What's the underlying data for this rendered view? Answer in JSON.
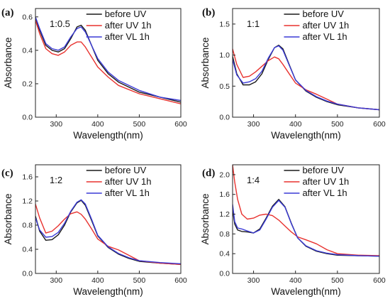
{
  "colors": {
    "before UV": "#1a1a1a",
    "after UV 1h": "#e8322f",
    "after VL 1h": "#3a3ad6"
  },
  "chart_data": [
    {
      "type": "line",
      "panel": "(a)",
      "ratio": "1:0.5",
      "xlabel": "Wavelength(nm)",
      "ylabel": "Absorbance",
      "xlim": [
        250,
        600
      ],
      "ylim": [
        0.0,
        0.65
      ],
      "xticks": [
        300,
        400,
        500,
        600
      ],
      "yticks": [
        0.0,
        0.2,
        0.4,
        0.6
      ],
      "ytick_labels": [
        "0.0",
        "0.2",
        "0.4",
        "0.6"
      ],
      "legend": [
        "before UV",
        "after UV 1h",
        "after VL 1h"
      ],
      "x": [
        250,
        260,
        275,
        290,
        305,
        320,
        335,
        350,
        360,
        370,
        385,
        400,
        425,
        450,
        500,
        550,
        600
      ],
      "series": [
        {
          "name": "before UV",
          "values": [
            0.59,
            0.52,
            0.43,
            0.4,
            0.39,
            0.41,
            0.47,
            0.54,
            0.55,
            0.52,
            0.43,
            0.34,
            0.26,
            0.21,
            0.15,
            0.12,
            0.09
          ]
        },
        {
          "name": "after UV 1h",
          "values": [
            0.58,
            0.5,
            0.41,
            0.38,
            0.37,
            0.39,
            0.43,
            0.45,
            0.45,
            0.42,
            0.36,
            0.3,
            0.24,
            0.19,
            0.14,
            0.11,
            0.08
          ]
        },
        {
          "name": "after VL 1h",
          "values": [
            0.6,
            0.53,
            0.44,
            0.41,
            0.4,
            0.42,
            0.48,
            0.53,
            0.54,
            0.51,
            0.43,
            0.35,
            0.27,
            0.22,
            0.16,
            0.12,
            0.1
          ]
        }
      ]
    },
    {
      "type": "line",
      "panel": "(b)",
      "ratio": "1:1",
      "xlabel": "Wavelength(nm)",
      "ylabel": "Absorbance",
      "xlim": [
        250,
        600
      ],
      "ylim": [
        0.0,
        1.75
      ],
      "xticks": [
        300,
        400,
        500,
        600
      ],
      "yticks": [
        0.0,
        0.5,
        1.0,
        1.5
      ],
      "ytick_labels": [
        "0.0",
        "0.5",
        "1.0",
        "1.5"
      ],
      "legend": [
        "before UV",
        "after UV 1h",
        "after VL 1h"
      ],
      "x": [
        250,
        260,
        275,
        290,
        305,
        320,
        335,
        350,
        360,
        370,
        385,
        400,
        425,
        450,
        475,
        500,
        550,
        600
      ],
      "series": [
        {
          "name": "before UV",
          "values": [
            0.98,
            0.7,
            0.52,
            0.52,
            0.57,
            0.7,
            0.93,
            1.12,
            1.16,
            1.1,
            0.85,
            0.6,
            0.42,
            0.32,
            0.25,
            0.2,
            0.15,
            0.12
          ]
        },
        {
          "name": "after UV 1h",
          "values": [
            1.1,
            0.85,
            0.64,
            0.66,
            0.73,
            0.82,
            0.91,
            0.97,
            0.94,
            0.85,
            0.7,
            0.55,
            0.44,
            0.37,
            0.29,
            0.21,
            0.15,
            0.12
          ]
        },
        {
          "name": "after VL 1h",
          "values": [
            0.93,
            0.68,
            0.55,
            0.57,
            0.62,
            0.74,
            0.95,
            1.12,
            1.15,
            1.08,
            0.84,
            0.6,
            0.43,
            0.33,
            0.26,
            0.21,
            0.15,
            0.12
          ]
        }
      ]
    },
    {
      "type": "line",
      "panel": "(c)",
      "ratio": "1:2",
      "xlabel": "Wavelength(nm)",
      "ylabel": "Absorbance",
      "xlim": [
        250,
        600
      ],
      "ylim": [
        0.0,
        1.8
      ],
      "xticks": [
        300,
        400,
        500,
        600
      ],
      "yticks": [
        0.0,
        0.4,
        0.8,
        1.2,
        1.6
      ],
      "ytick_labels": [
        "0.0",
        "0.4",
        "0.8",
        "1.2",
        "1.6"
      ],
      "legend": [
        "before UV",
        "after UV 1h",
        "after VL 1h"
      ],
      "x": [
        250,
        260,
        275,
        290,
        305,
        320,
        335,
        350,
        360,
        370,
        385,
        400,
        425,
        450,
        475,
        500,
        550,
        600
      ],
      "series": [
        {
          "name": "before UV",
          "values": [
            0.95,
            0.7,
            0.55,
            0.56,
            0.64,
            0.8,
            1.02,
            1.17,
            1.21,
            1.13,
            0.88,
            0.62,
            0.43,
            0.32,
            0.25,
            0.2,
            0.17,
            0.15
          ]
        },
        {
          "name": "after UV 1h",
          "values": [
            1.15,
            0.92,
            0.67,
            0.7,
            0.79,
            0.9,
            0.99,
            1.02,
            0.98,
            0.9,
            0.74,
            0.57,
            0.45,
            0.39,
            0.3,
            0.21,
            0.17,
            0.15
          ]
        },
        {
          "name": "after VL 1h",
          "values": [
            0.92,
            0.72,
            0.6,
            0.61,
            0.68,
            0.83,
            1.03,
            1.18,
            1.22,
            1.15,
            0.9,
            0.63,
            0.44,
            0.33,
            0.26,
            0.21,
            0.18,
            0.16
          ]
        }
      ]
    },
    {
      "type": "line",
      "panel": "(d)",
      "ratio": "1:4",
      "xlabel": "Wavelength(nm)",
      "ylabel": "Absorbance",
      "xlim": [
        250,
        600
      ],
      "ylim": [
        0.0,
        2.2
      ],
      "xticks": [
        300,
        400,
        500,
        600
      ],
      "yticks": [
        0.0,
        0.4,
        0.8,
        1.2,
        1.6,
        2.0
      ],
      "ytick_labels": [
        "0.0",
        "0.4",
        "0.8",
        "1.2",
        "1.6",
        "2.0"
      ],
      "legend": [
        "before UV",
        "after UV 1h",
        "after VL  1h"
      ],
      "x": [
        250,
        255,
        262,
        272,
        285,
        300,
        315,
        330,
        345,
        360,
        375,
        390,
        405,
        425,
        450,
        475,
        500,
        550,
        600
      ],
      "series": [
        {
          "name": "before UV",
          "values": [
            1.3,
            1.0,
            0.88,
            0.85,
            0.84,
            0.82,
            0.9,
            1.12,
            1.36,
            1.5,
            1.35,
            1.02,
            0.72,
            0.55,
            0.45,
            0.4,
            0.37,
            0.36,
            0.35
          ]
        },
        {
          "name": "after UV 1h",
          "values": [
            2.2,
            1.85,
            1.5,
            1.2,
            1.1,
            1.12,
            1.18,
            1.2,
            1.17,
            1.08,
            0.96,
            0.84,
            0.74,
            0.68,
            0.6,
            0.48,
            0.4,
            0.37,
            0.36
          ]
        },
        {
          "name": "after VL  1h",
          "values": [
            1.4,
            1.05,
            0.92,
            0.9,
            0.86,
            0.82,
            0.88,
            1.1,
            1.34,
            1.48,
            1.34,
            1.01,
            0.72,
            0.56,
            0.46,
            0.41,
            0.38,
            0.36,
            0.35
          ]
        }
      ]
    }
  ]
}
